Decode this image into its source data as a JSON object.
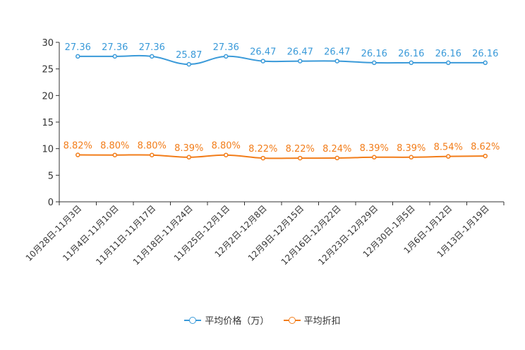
{
  "chart_data": {
    "type": "line",
    "title": "",
    "xlabel": "",
    "ylabel": "",
    "ylim": [
      0,
      30
    ],
    "yticks": [
      0,
      5,
      10,
      15,
      20,
      25,
      30
    ],
    "categories": [
      "10月28日-11月3日",
      "11月4日-11月10日",
      "11月11日-11月17日",
      "11月18日-11月24日",
      "11月25日-12月1日",
      "12月2日-12月8日",
      "12月9日-12月15日",
      "12月16日-12月22日",
      "12月23日-12月29日",
      "12月30日-1月5日",
      "1月6日-1月12日",
      "1月13日-1月19日"
    ],
    "series": [
      {
        "name": "平均价格（万）",
        "color": "#3a9ad9",
        "values": [
          27.36,
          27.36,
          27.36,
          25.87,
          27.36,
          26.47,
          26.47,
          26.47,
          26.16,
          26.16,
          26.16,
          26.16
        ],
        "labels": [
          "27.36",
          "27.36",
          "27.36",
          "25.87",
          "27.36",
          "26.47",
          "26.47",
          "26.47",
          "26.16",
          "26.16",
          "26.16",
          "26.16"
        ]
      },
      {
        "name": "平均折扣",
        "color": "#f27d1a",
        "values": [
          8.82,
          8.8,
          8.8,
          8.39,
          8.8,
          8.22,
          8.22,
          8.24,
          8.39,
          8.39,
          8.54,
          8.62
        ],
        "labels": [
          "8.82%",
          "8.80%",
          "8.80%",
          "8.39%",
          "8.80%",
          "8.22%",
          "8.22%",
          "8.24%",
          "8.39%",
          "8.39%",
          "8.54%",
          "8.62%"
        ]
      }
    ],
    "legend_position": "bottom",
    "grid": false
  },
  "colors": {
    "axis": "#333333",
    "tick_text": "#333333"
  }
}
